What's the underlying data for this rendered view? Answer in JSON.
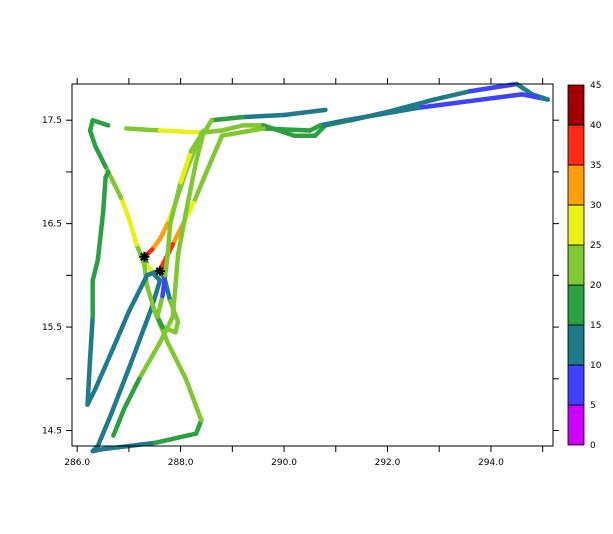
{
  "chart_data": {
    "type": "line",
    "title": "",
    "xlabel": "",
    "ylabel": "",
    "xlim": [
      285.9,
      295.2
    ],
    "ylim": [
      14.35,
      17.85
    ],
    "x_ticks": [
      286.0,
      288.0,
      290.0,
      292.0,
      294.0
    ],
    "x_tick_labels": [
      "286.0",
      "288.0",
      "290.0",
      "292.0",
      "294.0"
    ],
    "x_minor_ticks": [
      287.0,
      289.0,
      291.0,
      293.0,
      295.0
    ],
    "y_ticks": [
      14.5,
      15.5,
      16.5,
      17.5
    ],
    "y_tick_labels": [
      "14.5",
      "15.5",
      "16.5",
      "17.5"
    ],
    "y_minor_ticks": [
      15.0,
      16.0,
      17.0
    ],
    "colorbar": {
      "levels": [
        "0",
        "5",
        "10",
        "15",
        "20",
        "25",
        "30",
        "35",
        "40",
        "45"
      ],
      "colors": [
        "#cc00ff",
        "#4040ff",
        "#1f7a8c",
        "#2aa040",
        "#80c832",
        "#e8f014",
        "#ff9e0a",
        "#ff2a14",
        "#a00000"
      ]
    },
    "series": [
      {
        "points": [
          [
            290.8,
            17.6,
            12
          ],
          [
            290.0,
            17.55,
            12
          ],
          [
            289.2,
            17.53,
            18
          ],
          [
            288.6,
            17.5,
            20
          ],
          [
            288.3,
            17.25,
            22
          ],
          [
            288.1,
            17.0,
            24
          ],
          [
            287.9,
            16.7,
            26
          ],
          [
            287.75,
            16.5,
            30
          ],
          [
            287.6,
            16.35,
            31
          ],
          [
            287.45,
            16.25,
            35
          ],
          [
            287.3,
            16.18,
            12
          ],
          [
            287.35,
            16.1,
            26
          ],
          [
            287.5,
            16.0,
            10
          ],
          [
            287.6,
            15.95,
            10
          ],
          [
            287.45,
            15.7,
            12
          ],
          [
            287.3,
            15.5,
            12
          ],
          [
            287.0,
            15.1,
            12
          ],
          [
            286.65,
            14.65,
            12
          ],
          [
            286.4,
            14.35,
            12
          ],
          [
            286.3,
            14.3,
            12
          ]
        ]
      },
      {
        "points": [
          [
            286.3,
            14.3,
            12
          ],
          [
            286.5,
            14.32,
            12
          ],
          [
            287.5,
            14.38,
            16
          ],
          [
            288.3,
            14.47,
            18
          ],
          [
            288.4,
            14.6,
            20
          ],
          [
            288.1,
            15.0,
            20
          ],
          [
            287.75,
            15.35,
            20
          ],
          [
            287.5,
            15.65,
            22
          ],
          [
            287.35,
            15.9,
            22
          ],
          [
            287.3,
            16.1,
            24
          ],
          [
            287.15,
            16.3,
            26
          ],
          [
            287.0,
            16.55,
            25
          ],
          [
            286.85,
            16.75,
            24
          ],
          [
            286.7,
            16.9,
            20
          ],
          [
            286.55,
            17.05,
            18
          ],
          [
            286.35,
            17.25,
            16
          ],
          [
            286.25,
            17.4,
            16
          ],
          [
            286.3,
            17.5,
            18
          ],
          [
            286.6,
            17.45,
            20
          ]
        ]
      },
      {
        "points": [
          [
            286.95,
            17.42,
            24
          ],
          [
            287.6,
            17.4,
            25
          ],
          [
            288.4,
            17.38,
            24
          ],
          [
            288.8,
            17.4,
            22
          ],
          [
            289.2,
            17.45,
            20
          ],
          [
            289.6,
            17.45,
            18
          ],
          [
            290.2,
            17.35,
            15
          ],
          [
            290.6,
            17.35,
            15
          ],
          [
            290.8,
            17.45,
            15
          ],
          [
            291.3,
            17.5,
            12
          ],
          [
            292.0,
            17.58,
            12
          ],
          [
            292.9,
            17.7,
            10
          ],
          [
            293.6,
            17.78,
            5
          ],
          [
            294.1,
            17.82,
            5
          ],
          [
            294.5,
            17.85,
            10
          ],
          [
            294.8,
            17.75,
            12
          ],
          [
            295.1,
            17.7,
            12
          ]
        ]
      },
      {
        "points": [
          [
            295.1,
            17.7,
            12
          ],
          [
            294.9,
            17.72,
            8
          ],
          [
            294.6,
            17.75,
            6
          ],
          [
            292.6,
            17.62,
            12
          ],
          [
            291.2,
            17.5,
            12
          ],
          [
            290.7,
            17.45,
            16
          ],
          [
            290.5,
            17.4,
            16
          ],
          [
            289.6,
            17.42,
            20
          ],
          [
            288.8,
            17.35,
            22
          ],
          [
            288.5,
            17.0,
            24
          ],
          [
            288.25,
            16.7,
            28
          ],
          [
            288.05,
            16.5,
            32
          ],
          [
            287.85,
            16.3,
            35
          ],
          [
            287.6,
            16.05,
            12
          ],
          [
            287.7,
            15.95,
            14
          ],
          [
            287.8,
            15.75,
            20
          ],
          [
            287.95,
            15.55,
            22
          ],
          [
            287.9,
            15.45,
            20
          ],
          [
            287.65,
            15.5,
            18
          ],
          [
            287.55,
            15.6,
            20
          ],
          [
            287.65,
            15.8,
            6
          ],
          [
            287.7,
            16.0,
            20
          ],
          [
            287.75,
            16.2,
            22
          ],
          [
            287.8,
            16.5,
            24
          ],
          [
            288.0,
            16.9,
            26
          ],
          [
            288.2,
            17.2,
            24
          ],
          [
            288.45,
            17.4,
            22
          ]
        ]
      },
      {
        "points": [
          [
            288.45,
            17.4,
            22
          ],
          [
            288.3,
            17.1,
            20
          ],
          [
            288.1,
            16.6,
            22
          ],
          [
            287.95,
            16.2,
            20
          ],
          [
            287.9,
            15.9,
            22
          ],
          [
            287.85,
            15.6,
            24
          ],
          [
            287.6,
            15.35,
            20
          ],
          [
            287.2,
            15.0,
            16
          ],
          [
            286.9,
            14.7,
            16
          ],
          [
            286.7,
            14.45,
            12
          ]
        ]
      },
      {
        "points": [
          [
            286.2,
            14.75,
            12
          ],
          [
            286.25,
            15.2,
            12
          ],
          [
            286.3,
            15.6,
            16
          ],
          [
            286.3,
            15.95,
            16
          ],
          [
            286.4,
            16.15,
            16
          ],
          [
            286.5,
            16.6,
            16
          ],
          [
            286.55,
            16.95,
            16
          ],
          [
            286.6,
            17.0,
            14
          ]
        ]
      },
      {
        "points": [
          [
            286.2,
            14.75,
            12
          ],
          [
            286.35,
            14.9,
            12
          ],
          [
            286.7,
            15.3,
            12
          ],
          [
            287.0,
            15.65,
            12
          ],
          [
            287.35,
            16.0,
            12
          ],
          [
            287.6,
            16.05,
            12
          ]
        ]
      }
    ],
    "markers": [
      {
        "x": 287.3,
        "y": 16.18,
        "symbol": "star"
      },
      {
        "x": 287.6,
        "y": 16.04,
        "symbol": "star"
      }
    ]
  }
}
